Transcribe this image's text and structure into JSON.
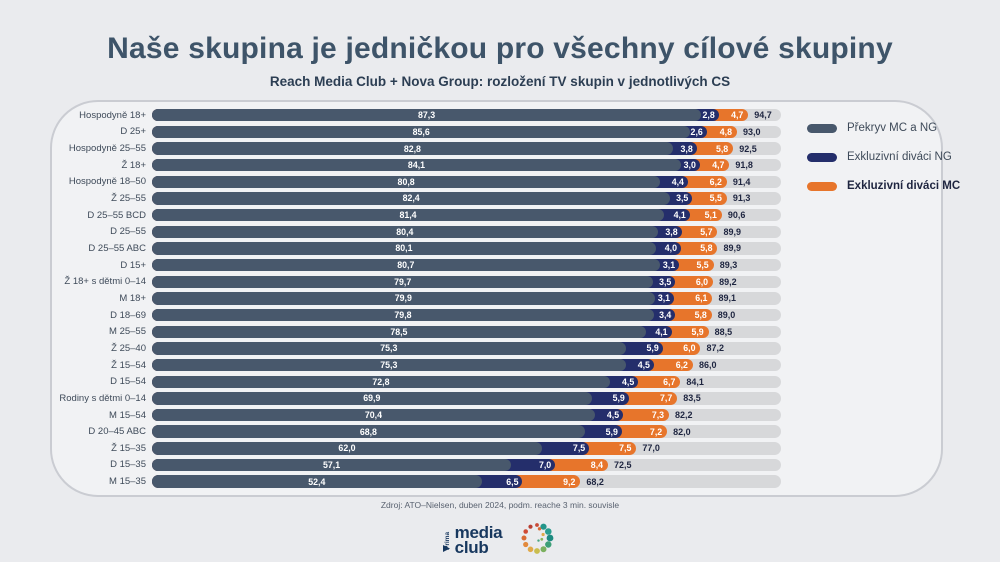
{
  "page": {
    "title": "Naše skupina je jedničkou pro všechny cílové skupiny",
    "subtitle": "Reach Media Club + Nova Group: rozložení TV skupin v jednotlivých CS",
    "source": "Zdroj: ATO–Nielsen, duben 2024, podm. reache 3 min. souvisle"
  },
  "legend": [
    {
      "label": "Překryv MC a NG",
      "color": "#48586c",
      "bold": false
    },
    {
      "label": "Exkluzivní diváci NG",
      "color": "#242e6b",
      "bold": false
    },
    {
      "label": "Exkluzivní diváci MC",
      "color": "#e7752b",
      "bold": true
    }
  ],
  "chart_data": {
    "type": "bar",
    "orientation": "horizontal",
    "stacked": true,
    "xlim": [
      0,
      100
    ],
    "grid": false,
    "value_format": "czech-decimal-comma",
    "track_color": "#d7d8da",
    "categories": [
      "Hospodyně 18+",
      "D 25+",
      "Hospodyně 25–55",
      "Ž 18+",
      "Hospodyně 18–50",
      "Ž 25–55",
      "D 25–55 BCD",
      "D 25–55",
      "D 25–55 ABC",
      "D 15+",
      "Ž 18+ s dětmi 0–14",
      "M 18+",
      "D 18–69",
      "M 25–55",
      "Ž 25–40",
      "Ž 15–54",
      "D 15–54",
      "Rodiny s dětmi 0–14",
      "M 15–54",
      "D 20–45 ABC",
      "Ž 15–35",
      "D 15–35",
      "M 15–35"
    ],
    "series": [
      {
        "name": "Překryv MC a NG",
        "color": "#48586c",
        "values": [
          87.3,
          85.6,
          82.8,
          84.1,
          80.8,
          82.4,
          81.4,
          80.4,
          80.1,
          80.7,
          79.7,
          79.9,
          79.8,
          78.5,
          75.3,
          75.3,
          72.8,
          69.9,
          70.4,
          68.8,
          62.0,
          57.1,
          52.4
        ]
      },
      {
        "name": "Exkluzivní diváci NG",
        "color": "#242e6b",
        "values": [
          2.8,
          2.6,
          3.8,
          3.0,
          4.4,
          3.5,
          4.1,
          3.8,
          4.0,
          3.1,
          3.5,
          3.1,
          3.4,
          4.1,
          5.9,
          4.5,
          4.5,
          5.9,
          4.5,
          5.9,
          7.5,
          7.0,
          6.5
        ]
      },
      {
        "name": "Exkluzivní diváci MC",
        "color": "#e7752b",
        "values": [
          4.7,
          4.8,
          5.8,
          4.7,
          6.2,
          5.5,
          5.1,
          5.7,
          5.8,
          5.5,
          6.0,
          6.1,
          5.8,
          5.9,
          6.0,
          6.2,
          6.7,
          7.7,
          7.3,
          7.2,
          7.5,
          8.4,
          9.2
        ]
      }
    ],
    "totals": [
      94.7,
      93.0,
      92.5,
      91.8,
      91.4,
      91.3,
      90.6,
      89.9,
      89.9,
      89.3,
      89.2,
      89.1,
      89.0,
      88.5,
      87.2,
      86.0,
      84.1,
      83.5,
      82.2,
      82.0,
      77.0,
      72.5,
      68.2
    ]
  },
  "footer": {
    "media_club_line1": "media",
    "media_club_line2": "club",
    "prima_mark": "Prima"
  }
}
